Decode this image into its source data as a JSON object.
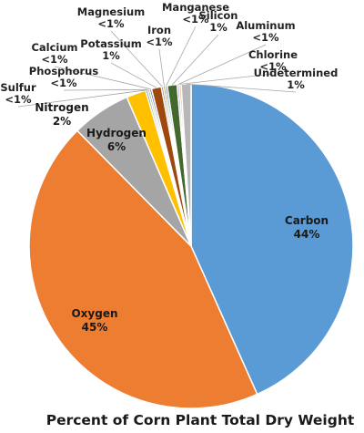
{
  "chart_data": {
    "type": "pie",
    "title": "Percent of Corn Plant Total Dry Weight",
    "slices": [
      {
        "name": "Carbon",
        "value": 44,
        "label": "44%",
        "color": "#5b9bd5"
      },
      {
        "name": "Oxygen",
        "value": 45,
        "label": "45%",
        "color": "#ed7d31"
      },
      {
        "name": "Hydrogen",
        "value": 6,
        "label": "6%",
        "color": "#a5a5a5"
      },
      {
        "name": "Nitrogen",
        "value": 2,
        "label": "2%",
        "color": "#ffc000"
      },
      {
        "name": "Sulfur",
        "value": 0.2,
        "label": "<1%",
        "color": "#4472c4"
      },
      {
        "name": "Phosphorus",
        "value": 0.2,
        "label": "<1%",
        "color": "#70ad47"
      },
      {
        "name": "Calcium",
        "value": 0.2,
        "label": "<1%",
        "color": "#264478"
      },
      {
        "name": "Potassium",
        "value": 1,
        "label": "1%",
        "color": "#9e480e"
      },
      {
        "name": "Magnesium",
        "value": 0.2,
        "label": "<1%",
        "color": "#636363"
      },
      {
        "name": "Iron",
        "value": 0.2,
        "label": "<1%",
        "color": "#997300"
      },
      {
        "name": "Manganese",
        "value": 0.2,
        "label": "<1%",
        "color": "#255e91"
      },
      {
        "name": "Silicon",
        "value": 1,
        "label": "1%",
        "color": "#43682b"
      },
      {
        "name": "Aluminum",
        "value": 0.2,
        "label": "<1%",
        "color": "#698ed0"
      },
      {
        "name": "Chlorine",
        "value": 0.2,
        "label": "<1%",
        "color": "#f1975a"
      },
      {
        "name": "Undetermined",
        "value": 1,
        "label": "1%",
        "color": "#b7b7b7"
      }
    ]
  }
}
